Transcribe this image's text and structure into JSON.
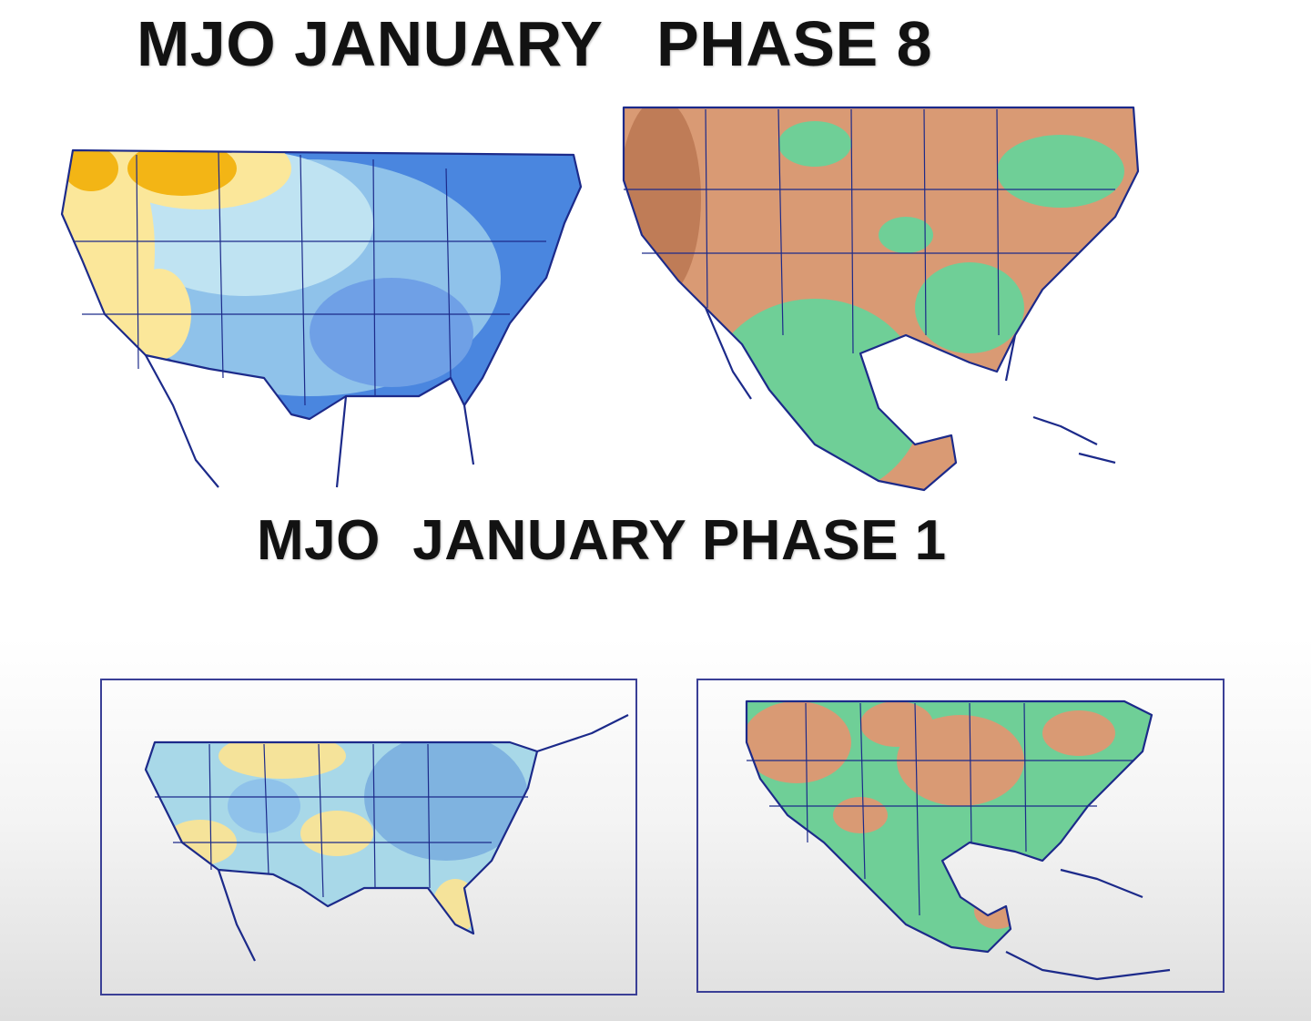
{
  "titles": {
    "top": "MJO JANUARY   PHASE 8",
    "middle": "MJO  JANUARY PHASE 1"
  },
  "colors": {
    "warm_strong": "#f3b515",
    "warm_light": "#fbe79a",
    "cool_light": "#bfe3f2",
    "cool_mid": "#8fc2ea",
    "cool_strong": "#4a86df",
    "dry": "#d99a74",
    "dry_strong": "#bf7c57",
    "wet": "#6fcf97",
    "boundary": "#1c2a8a"
  }
}
